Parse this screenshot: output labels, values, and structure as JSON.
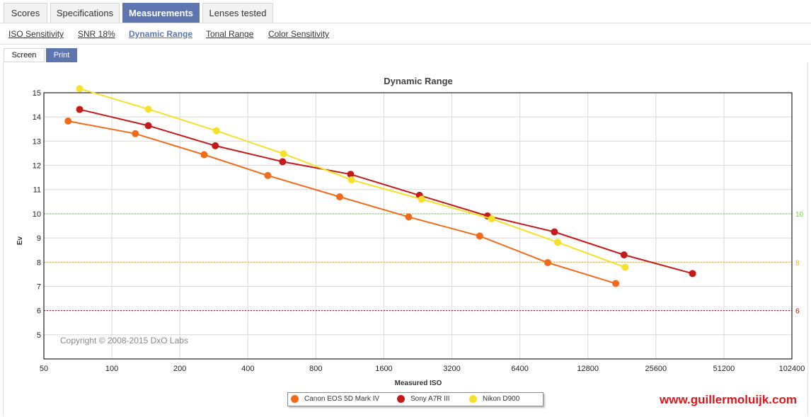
{
  "tabs": [
    {
      "label": "Scores"
    },
    {
      "label": "Specifications"
    },
    {
      "label": "Measurements"
    },
    {
      "label": "Lenses tested"
    }
  ],
  "subnav": [
    {
      "label": "ISO Sensitivity"
    },
    {
      "label": "SNR 18%"
    },
    {
      "label": "Dynamic Range"
    },
    {
      "label": "Tonal Range"
    },
    {
      "label": "Color Sensitivity"
    }
  ],
  "mode": {
    "screen_label": "Screen",
    "print_label": "Print"
  },
  "watermark": "www.guillermoluijk.com",
  "chart_data": {
    "type": "line",
    "title": "Dynamic Range",
    "xlabel": "Measured ISO",
    "ylabel": "Ev",
    "x_scale": "log2",
    "xlim": [
      50,
      102400
    ],
    "ylim": [
      4,
      15
    ],
    "x_ticks": [
      50,
      100,
      200,
      400,
      800,
      1600,
      3200,
      6400,
      12800,
      25600,
      51200,
      102400
    ],
    "y_ticks": [
      5,
      6,
      7,
      8,
      9,
      10,
      11,
      12,
      13,
      14,
      15
    ],
    "grid": true,
    "legend_position": "bottom-center",
    "copyright": "Copyright © 2008-2015 DxO Labs",
    "reference_lines": [
      {
        "y": 10,
        "label": "10",
        "color": "#66dd33",
        "style": "dotted"
      },
      {
        "y": 8,
        "label": "8",
        "color": "#e8b020",
        "style": "dotted"
      },
      {
        "y": 6,
        "label": "6",
        "color": "#a01010",
        "style": "dotted"
      }
    ],
    "series": [
      {
        "name": "Canon EOS 5D Mark IV",
        "color": "#f26a1b",
        "x": [
          64,
          127,
          256,
          490,
          1020,
          2060,
          4250,
          8500,
          17000
        ],
        "y": [
          13.83,
          13.31,
          12.44,
          11.58,
          10.7,
          9.87,
          9.08,
          7.98,
          7.12
        ]
      },
      {
        "name": "Sony A7R III",
        "color": "#c41a1a",
        "x": [
          72,
          145,
          287,
          570,
          1140,
          2300,
          4600,
          9100,
          18500,
          37200
        ],
        "y": [
          14.31,
          13.64,
          12.81,
          12.15,
          11.63,
          10.76,
          9.91,
          9.25,
          8.3,
          7.53
        ]
      },
      {
        "name": "Nikon D900",
        "color": "#f5e02a",
        "x": [
          72,
          145,
          290,
          575,
          1150,
          2350,
          4800,
          9400,
          18700
        ],
        "y": [
          15.17,
          14.32,
          13.43,
          12.48,
          11.4,
          10.6,
          9.79,
          8.82,
          7.79
        ]
      }
    ]
  }
}
